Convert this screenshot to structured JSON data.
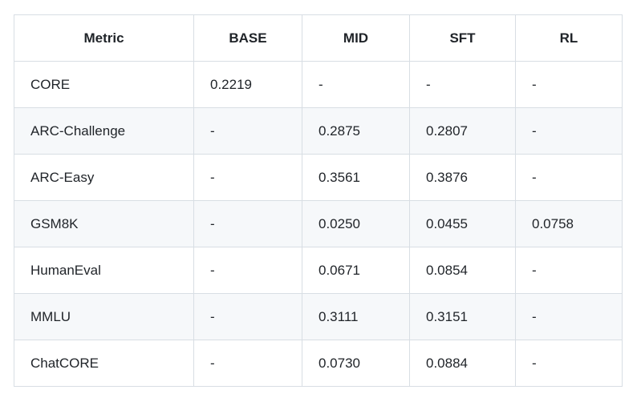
{
  "table": {
    "columns": [
      "Metric",
      "BASE",
      "MID",
      "SFT",
      "RL"
    ],
    "rows": [
      {
        "metric": "CORE",
        "values": [
          "0.2219",
          "-",
          "-",
          "-"
        ]
      },
      {
        "metric": "ARC-Challenge",
        "values": [
          "-",
          "0.2875",
          "0.2807",
          "-"
        ]
      },
      {
        "metric": "ARC-Easy",
        "values": [
          "-",
          "0.3561",
          "0.3876",
          "-"
        ]
      },
      {
        "metric": "GSM8K",
        "values": [
          "-",
          "0.0250",
          "0.0455",
          "0.0758"
        ]
      },
      {
        "metric": "HumanEval",
        "values": [
          "-",
          "0.0671",
          "0.0854",
          "-"
        ]
      },
      {
        "metric": "MMLU",
        "values": [
          "-",
          "0.3111",
          "0.3151",
          "-"
        ]
      },
      {
        "metric": "ChatCORE",
        "values": [
          "-",
          "0.0730",
          "0.0884",
          "-"
        ]
      }
    ]
  },
  "colors": {
    "row_stripe": "#f6f8fa",
    "border": "#d8dee4",
    "text": "#1f2328",
    "background": "#ffffff"
  }
}
